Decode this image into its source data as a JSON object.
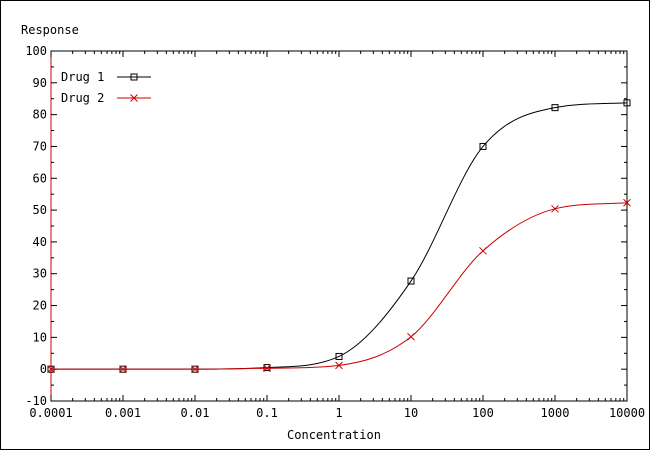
{
  "chart_data": {
    "type": "line",
    "title": "",
    "ylabel": "Response",
    "xlabel": "Concentration",
    "x_scale": "log",
    "xlim": [
      0.0001,
      10000
    ],
    "ylim": [
      -10,
      100
    ],
    "x_ticks": [
      0.0001,
      0.001,
      0.01,
      0.1,
      1,
      10,
      100,
      1000,
      10000
    ],
    "x_tick_labels": [
      "0.0001",
      "0.001",
      "0.01",
      "0.1",
      "1",
      "10",
      "100",
      "1000",
      "10000"
    ],
    "y_ticks": [
      -10,
      0,
      10,
      20,
      30,
      40,
      50,
      60,
      70,
      80,
      90,
      100
    ],
    "y_tick_labels": [
      "-10",
      "0",
      "10",
      "20",
      "30",
      "40",
      "50",
      "60",
      "70",
      "80",
      "90",
      "100"
    ],
    "grid": false,
    "legend_position": "top-left",
    "series": [
      {
        "name": "Drug 1",
        "color": "#000000",
        "marker": "square",
        "x": [
          0.0001,
          0.001,
          0.01,
          0.1,
          1,
          10,
          100,
          1000,
          10000
        ],
        "y": [
          0,
          0,
          0,
          0.5,
          4,
          27.7,
          70,
          82.2,
          83.7
        ]
      },
      {
        "name": "Drug 2",
        "color": "#cc0000",
        "marker": "x",
        "x": [
          0.0001,
          0.001,
          0.01,
          0.1,
          1,
          10,
          100,
          1000,
          10000
        ],
        "y": [
          0,
          0,
          0,
          0.3,
          1.2,
          10.2,
          37.2,
          50.4,
          52.3
        ]
      }
    ]
  }
}
